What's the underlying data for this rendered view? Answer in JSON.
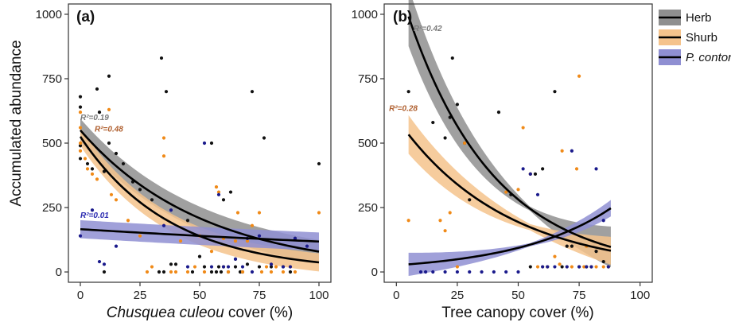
{
  "figure": {
    "ylabel": "Accumulated abundance",
    "colors": {
      "herb_line": "#000000",
      "herb_band": "#8f8f8f",
      "shrub_band": "#f5c38c",
      "shrub_dot": "#f08a18",
      "pinus_band": "#8f8fd2",
      "pinus_dot": "#1a1a8c",
      "herb_dot": "#111111",
      "r2_herb": "#7a7a7a",
      "r2_shrub": "#b06030",
      "r2_pinus": "#2a2ab0"
    }
  },
  "legend": {
    "items": [
      {
        "label": "Herb",
        "key": "herb"
      },
      {
        "label": "Shurb",
        "key": "shrub"
      },
      {
        "label": "P. contorta",
        "key": "pinus"
      }
    ],
    "placement": "top-right"
  },
  "chart_data": [
    {
      "type": "scatter",
      "panel_label": "(a)",
      "xlabel_italic": "Chusquea culeou",
      "xlabel_rest": " cover (%)",
      "ylabel": "Accumulated abundance",
      "xlim": [
        -5,
        105
      ],
      "ylim": [
        -40,
        1040
      ],
      "xticks": [
        0,
        25,
        50,
        75,
        100
      ],
      "yticks": [
        0,
        250,
        500,
        750,
        1000
      ],
      "r2": [
        {
          "series": "herb",
          "text": "R²=0.19",
          "x": 0,
          "y": 590
        },
        {
          "series": "shrub",
          "text": "R²=0.48",
          "x": 6,
          "y": 545
        },
        {
          "series": "pinus",
          "text": "R²=0.01",
          "x": 0,
          "y": 210
        }
      ],
      "series": [
        {
          "key": "herb",
          "fit_type": "exp",
          "a": 550,
          "b": -0.0194,
          "band": 45,
          "points": [
            [
              0,
              680
            ],
            [
              0,
              640
            ],
            [
              0,
              490
            ],
            [
              0,
              440
            ],
            [
              3,
              420
            ],
            [
              5,
              400
            ],
            [
              7,
              710
            ],
            [
              8,
              620
            ],
            [
              10,
              390
            ],
            [
              10,
              0
            ],
            [
              12,
              760
            ],
            [
              12,
              500
            ],
            [
              15,
              460
            ],
            [
              18,
              420
            ],
            [
              22,
              350
            ],
            [
              25,
              320
            ],
            [
              30,
              280
            ],
            [
              33,
              0
            ],
            [
              34,
              830
            ],
            [
              35,
              0
            ],
            [
              36,
              700
            ],
            [
              38,
              30
            ],
            [
              40,
              30
            ],
            [
              45,
              200
            ],
            [
              47,
              0
            ],
            [
              50,
              60
            ],
            [
              52,
              20
            ],
            [
              55,
              500
            ],
            [
              55,
              0
            ],
            [
              57,
              0
            ],
            [
              58,
              20
            ],
            [
              59,
              0
            ],
            [
              60,
              280
            ],
            [
              60,
              20
            ],
            [
              62,
              0
            ],
            [
              63,
              310
            ],
            [
              65,
              50
            ],
            [
              65,
              20
            ],
            [
              67,
              0
            ],
            [
              68,
              0
            ],
            [
              70,
              30
            ],
            [
              72,
              700
            ],
            [
              75,
              20
            ],
            [
              77,
              520
            ],
            [
              80,
              20
            ],
            [
              85,
              20
            ],
            [
              88,
              0
            ],
            [
              90,
              130
            ],
            [
              100,
              420
            ]
          ]
        },
        {
          "key": "shrub",
          "fit_type": "exp",
          "a": 525,
          "b": -0.0265,
          "band": 35,
          "points": [
            [
              0,
              620
            ],
            [
              0,
              560
            ],
            [
              0,
              500
            ],
            [
              0,
              470
            ],
            [
              2,
              440
            ],
            [
              3,
              400
            ],
            [
              5,
              380
            ],
            [
              7,
              360
            ],
            [
              12,
              630
            ],
            [
              13,
              300
            ],
            [
              15,
              280
            ],
            [
              20,
              200
            ],
            [
              25,
              140
            ],
            [
              28,
              0
            ],
            [
              30,
              20
            ],
            [
              35,
              520
            ],
            [
              35,
              450
            ],
            [
              38,
              0
            ],
            [
              40,
              0
            ],
            [
              42,
              120
            ],
            [
              45,
              0
            ],
            [
              48,
              20
            ],
            [
              50,
              140
            ],
            [
              52,
              0
            ],
            [
              55,
              80
            ],
            [
              57,
              330
            ],
            [
              58,
              310
            ],
            [
              60,
              20
            ],
            [
              60,
              130
            ],
            [
              62,
              0
            ],
            [
              65,
              120
            ],
            [
              66,
              230
            ],
            [
              68,
              0
            ],
            [
              70,
              120
            ],
            [
              72,
              180
            ],
            [
              75,
              230
            ],
            [
              76,
              0
            ],
            [
              78,
              20
            ],
            [
              80,
              0
            ],
            [
              82,
              20
            ],
            [
              85,
              0
            ],
            [
              88,
              20
            ],
            [
              90,
              0
            ],
            [
              100,
              230
            ]
          ]
        },
        {
          "key": "pinus",
          "fit_type": "exp",
          "a": 166,
          "b": -0.0034,
          "band": 35,
          "points": [
            [
              0,
              140
            ],
            [
              5,
              240
            ],
            [
              8,
              40
            ],
            [
              10,
              30
            ],
            [
              15,
              100
            ],
            [
              35,
              180
            ],
            [
              38,
              240
            ],
            [
              45,
              20
            ],
            [
              52,
              500
            ],
            [
              55,
              20
            ],
            [
              58,
              300
            ],
            [
              60,
              20
            ],
            [
              62,
              20
            ],
            [
              65,
              50
            ],
            [
              68,
              20
            ],
            [
              70,
              130
            ],
            [
              72,
              0
            ],
            [
              75,
              140
            ],
            [
              80,
              30
            ],
            [
              85,
              20
            ],
            [
              88,
              20
            ],
            [
              90,
              130
            ],
            [
              95,
              100
            ]
          ]
        }
      ]
    },
    {
      "type": "scatter",
      "panel_label": "(b)",
      "xlabel": "Tree canopy cover (%)",
      "xlim": [
        -5,
        105
      ],
      "ylim": [
        -40,
        1040
      ],
      "xticks": [
        0,
        25,
        50,
        75,
        100
      ],
      "yticks": [
        0,
        250,
        500,
        750,
        1000
      ],
      "r2": [
        {
          "series": "herb",
          "text": "R²=0.42",
          "x": 7,
          "y": 935
        },
        {
          "series": "shrub",
          "text": "R²=0.28",
          "x": -3,
          "y": 625
        }
      ],
      "series": [
        {
          "key": "herb",
          "fit_type": "exp",
          "a": 1140,
          "b": -0.028,
          "x_range": [
            5,
            88
          ],
          "band_lo": 8,
          "band_hi": 115,
          "points": [
            [
              5,
              700
            ],
            [
              15,
              580
            ],
            [
              20,
              520
            ],
            [
              22,
              600
            ],
            [
              23,
              830
            ],
            [
              25,
              650
            ],
            [
              28,
              500
            ],
            [
              30,
              280
            ],
            [
              42,
              620
            ],
            [
              47,
              300
            ],
            [
              55,
              380
            ],
            [
              55,
              20
            ],
            [
              57,
              380
            ],
            [
              60,
              400
            ],
            [
              62,
              20
            ],
            [
              65,
              700
            ],
            [
              68,
              20
            ],
            [
              70,
              100
            ],
            [
              72,
              100
            ],
            [
              75,
              20
            ],
            [
              78,
              20
            ],
            [
              80,
              20
            ],
            [
              82,
              80
            ],
            [
              85,
              40
            ],
            [
              87,
              20
            ]
          ]
        },
        {
          "key": "shrub",
          "fit_type": "exp",
          "a": 597,
          "b": -0.0225,
          "x_range": [
            5,
            88
          ],
          "band_lo": 12,
          "band_hi": 75,
          "points": [
            [
              5,
              200
            ],
            [
              18,
              200
            ],
            [
              20,
              160
            ],
            [
              22,
              230
            ],
            [
              25,
              20
            ],
            [
              28,
              500
            ],
            [
              45,
              310
            ],
            [
              50,
              320
            ],
            [
              52,
              560
            ],
            [
              55,
              380
            ],
            [
              58,
              20
            ],
            [
              60,
              20
            ],
            [
              62,
              20
            ],
            [
              65,
              60
            ],
            [
              67,
              30
            ],
            [
              68,
              470
            ],
            [
              70,
              20
            ],
            [
              72,
              20
            ],
            [
              74,
              400
            ],
            [
              75,
              760
            ],
            [
              77,
              20
            ],
            [
              78,
              100
            ],
            [
              80,
              20
            ],
            [
              82,
              20
            ],
            [
              85,
              20
            ],
            [
              87,
              20
            ]
          ]
        },
        {
          "key": "pinus",
          "fit_type": "exp",
          "a": 26,
          "b": 0.0256,
          "x_range": [
            5,
            88
          ],
          "band_lo": 6,
          "band_hi": 45,
          "points": [
            [
              10,
              0
            ],
            [
              12,
              0
            ],
            [
              15,
              0
            ],
            [
              20,
              0
            ],
            [
              25,
              0
            ],
            [
              30,
              0
            ],
            [
              35,
              0
            ],
            [
              40,
              0
            ],
            [
              45,
              0
            ],
            [
              50,
              0
            ],
            [
              52,
              400
            ],
            [
              55,
              380
            ],
            [
              58,
              300
            ],
            [
              60,
              20
            ],
            [
              62,
              20
            ],
            [
              65,
              20
            ],
            [
              70,
              20
            ],
            [
              72,
              470
            ],
            [
              75,
              20
            ],
            [
              78,
              20
            ],
            [
              80,
              20
            ],
            [
              82,
              400
            ],
            [
              85,
              200
            ],
            [
              87,
              20
            ]
          ]
        }
      ]
    }
  ]
}
